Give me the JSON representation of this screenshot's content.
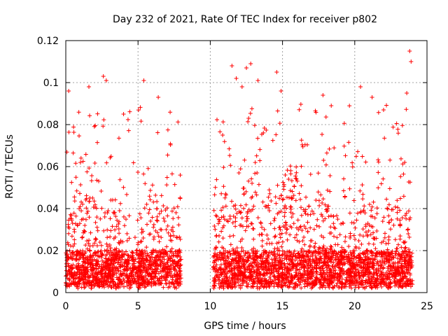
{
  "chart_data": {
    "type": "scatter",
    "title": "Day 232 of 2021, Rate Of TEC Index for receiver p802",
    "xlabel": "GPS time / hours",
    "ylabel": "ROTI / TECUs",
    "xlim": [
      0,
      25
    ],
    "ylim": [
      0,
      0.12
    ],
    "x_ticks": [
      "0",
      "5",
      "10",
      "15",
      "20",
      "25"
    ],
    "y_ticks": [
      "0",
      "0.02",
      "0.04",
      "0.06",
      "0.08",
      "0.1",
      "0.12"
    ],
    "x_tick_values": [
      0,
      5,
      10,
      15,
      20,
      25
    ],
    "y_tick_values": [
      0,
      0.02,
      0.04,
      0.06,
      0.08,
      0.1,
      0.12
    ],
    "grid": true,
    "marker": "+",
    "color": "#ff0000",
    "data_segments": [
      {
        "start": 0.0,
        "end": 8.0
      },
      {
        "start": 10.2,
        "end": 24.0
      }
    ],
    "notable_points": [
      {
        "x": 0.2,
        "y": 0.096
      },
      {
        "x": 1.6,
        "y": 0.098
      },
      {
        "x": 2.6,
        "y": 0.103
      },
      {
        "x": 2.8,
        "y": 0.101
      },
      {
        "x": 4.0,
        "y": 0.085
      },
      {
        "x": 5.4,
        "y": 0.101
      },
      {
        "x": 6.4,
        "y": 0.093
      },
      {
        "x": 11.5,
        "y": 0.108
      },
      {
        "x": 11.8,
        "y": 0.102
      },
      {
        "x": 12.2,
        "y": 0.098
      },
      {
        "x": 12.5,
        "y": 0.107
      },
      {
        "x": 12.8,
        "y": 0.109
      },
      {
        "x": 13.3,
        "y": 0.101
      },
      {
        "x": 14.6,
        "y": 0.105
      },
      {
        "x": 14.9,
        "y": 0.096
      },
      {
        "x": 17.8,
        "y": 0.094
      },
      {
        "x": 20.4,
        "y": 0.098
      },
      {
        "x": 21.2,
        "y": 0.093
      },
      {
        "x": 23.8,
        "y": 0.115
      },
      {
        "x": 23.9,
        "y": 0.11
      },
      {
        "x": 23.6,
        "y": 0.095
      }
    ]
  }
}
